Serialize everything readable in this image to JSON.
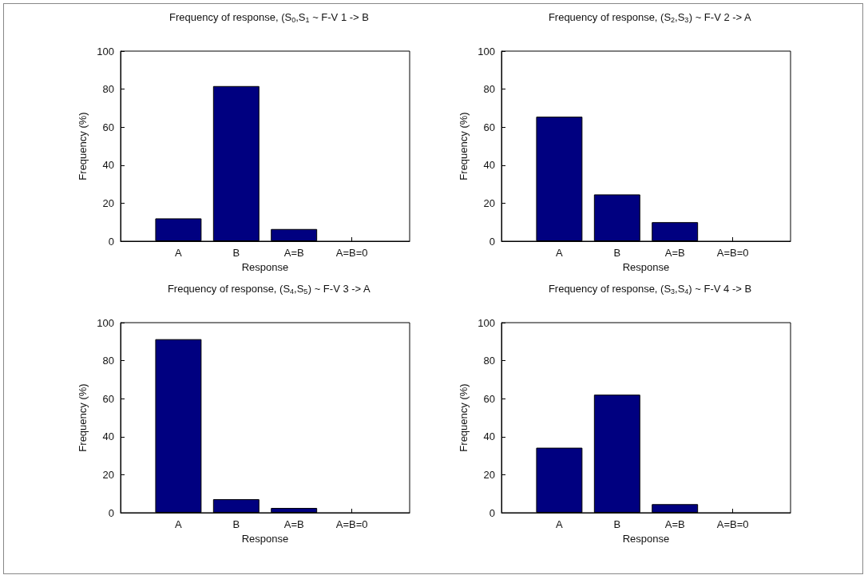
{
  "chart_data": [
    {
      "type": "bar",
      "title": "Frequency of response, (S$_{0}$,S$_{1}$ ~ F-V 1 -> B",
      "xlabel": "Response",
      "ylabel": "Frequency (%)",
      "categories": [
        "A",
        "B",
        "A=B",
        "A=B=0"
      ],
      "values": [
        12,
        81.6,
        6.4,
        0
      ],
      "color": "#000080",
      "ylim": [
        0,
        100
      ],
      "yticks": [
        0,
        20,
        40,
        60,
        80,
        100
      ]
    },
    {
      "type": "bar",
      "title": "Frequency of response, (S$_{2}$,S$_{3}$) ~ F-V 2 -> A",
      "xlabel": "Response",
      "ylabel": "Frequency (%)",
      "categories": [
        "A",
        "B",
        "A=B",
        "A=B=0"
      ],
      "values": [
        65.5,
        24.6,
        10,
        0
      ],
      "color": "#000080",
      "ylim": [
        0,
        100
      ],
      "yticks": [
        0,
        20,
        40,
        60,
        80,
        100
      ]
    },
    {
      "type": "bar",
      "title": "Frequency of response, (S$_{4}$,S$_{5}$) ~ F-V 3 -> A",
      "xlabel": "Response",
      "ylabel": "Frequency (%)",
      "categories": [
        "A",
        "B",
        "A=B",
        "A=B=0"
      ],
      "values": [
        91.3,
        7.1,
        2.5,
        0
      ],
      "color": "#000080",
      "ylim": [
        0,
        100
      ],
      "yticks": [
        0,
        20,
        40,
        60,
        80,
        100
      ]
    },
    {
      "type": "bar",
      "title": "Frequency of response, (S$_{3}$,S$_{4}$) ~ F-V 4 -> B",
      "xlabel": "Response",
      "ylabel": "Frequency (%)",
      "categories": [
        "A",
        "B",
        "A=B",
        "A=B=0"
      ],
      "values": [
        34.2,
        62.1,
        4.5,
        0
      ],
      "color": "#000080",
      "ylim": [
        0,
        100
      ],
      "yticks": [
        0,
        20,
        40,
        60,
        80,
        100
      ]
    }
  ]
}
